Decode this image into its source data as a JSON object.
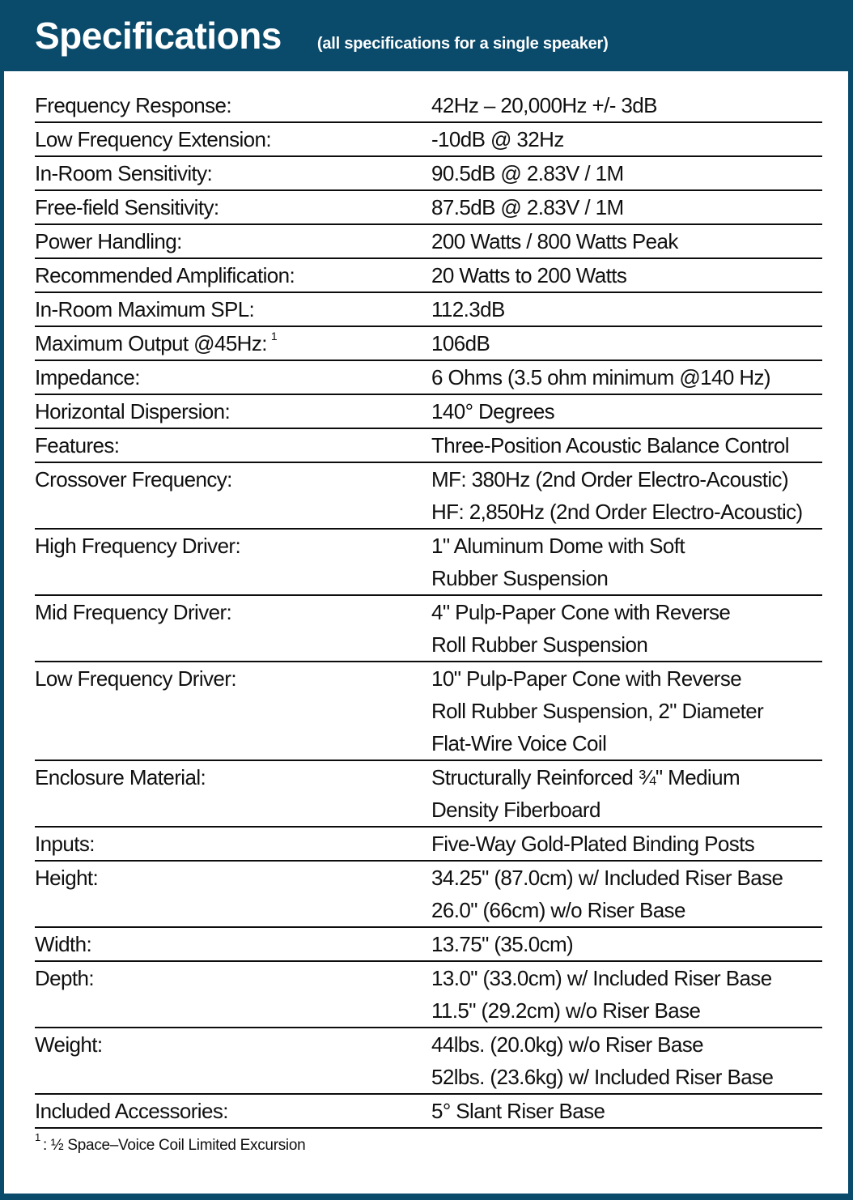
{
  "header": {
    "title": "Specifications",
    "subtitle": "(all specifications for a single speaker)"
  },
  "colors": {
    "banner_blue": "#0A4A6B",
    "text": "#101010",
    "panel_background": "#FFFFFF",
    "separator": "#0D0D0D"
  },
  "table": {
    "rows": [
      {
        "label": "Frequency Response:",
        "values": [
          "42Hz – 20,000Hz +/- 3dB"
        ]
      },
      {
        "label": "Low Frequency Extension:",
        "values": [
          "-10dB @ 32Hz"
        ]
      },
      {
        "label": "In-Room Sensitivity:",
        "values": [
          "90.5dB @ 2.83V / 1M"
        ]
      },
      {
        "label": "Free-field Sensitivity:",
        "values": [
          "87.5dB @ 2.83V / 1M"
        ]
      },
      {
        "label": "Power Handling:",
        "values": [
          "200 Watts / 800 Watts Peak"
        ]
      },
      {
        "label": "Recommended Amplification:",
        "values": [
          "20 Watts to 200 Watts"
        ]
      },
      {
        "label": "In-Room Maximum SPL:",
        "values": [
          "112.3dB"
        ]
      },
      {
        "label": "Maximum Output @45Hz:",
        "label_superscript": "1",
        "values": [
          "106dB"
        ]
      },
      {
        "label": "Impedance:",
        "values": [
          "6 Ohms (3.5 ohm minimum @140 Hz)"
        ]
      },
      {
        "label": "Horizontal Dispersion:",
        "values": [
          "140° Degrees"
        ]
      },
      {
        "label": "Features:",
        "values": [
          "Three-Position Acoustic Balance Control"
        ]
      },
      {
        "label": "Crossover Frequency:",
        "values": [
          "MF: 380Hz (2nd Order Electro-Acoustic)",
          "HF: 2,850Hz (2nd Order Electro-Acoustic)"
        ]
      },
      {
        "label": "High Frequency Driver:",
        "values": [
          "1\" Aluminum Dome with Soft",
          "Rubber Suspension"
        ]
      },
      {
        "label": "Mid Frequency Driver:",
        "values": [
          "4\" Pulp-Paper Cone with Reverse",
          "Roll Rubber Suspension"
        ]
      },
      {
        "label": "Low Frequency Driver:",
        "values": [
          "10\" Pulp-Paper Cone with Reverse",
          "Roll Rubber Suspension, 2\" Diameter",
          "Flat-Wire Voice Coil"
        ]
      },
      {
        "label": "Enclosure Material:",
        "values": [
          "Structurally Reinforced ¾\" Medium",
          "Density Fiberboard"
        ]
      },
      {
        "label": "Inputs:",
        "values": [
          "Five-Way Gold-Plated Binding Posts"
        ]
      },
      {
        "label": "Height:",
        "values": [
          "34.25\" (87.0cm) w/ Included Riser Base",
          "26.0\" (66cm) w/o Riser Base"
        ]
      },
      {
        "label": "Width:",
        "values": [
          "13.75\" (35.0cm)"
        ]
      },
      {
        "label": "Depth:",
        "values": [
          "13.0\" (33.0cm) w/ Included Riser Base",
          "11.5\" (29.2cm) w/o Riser Base"
        ]
      },
      {
        "label": "Weight:",
        "values": [
          "44lbs. (20.0kg) w/o Riser Base",
          "52lbs. (23.6kg) w/ Included Riser Base"
        ]
      },
      {
        "label": "Included Accessories:",
        "values": [
          "5° Slant Riser Base"
        ]
      }
    ]
  },
  "footnote": {
    "superscript": "1",
    "text": ": ½ Space–Voice Coil Limited Excursion"
  }
}
